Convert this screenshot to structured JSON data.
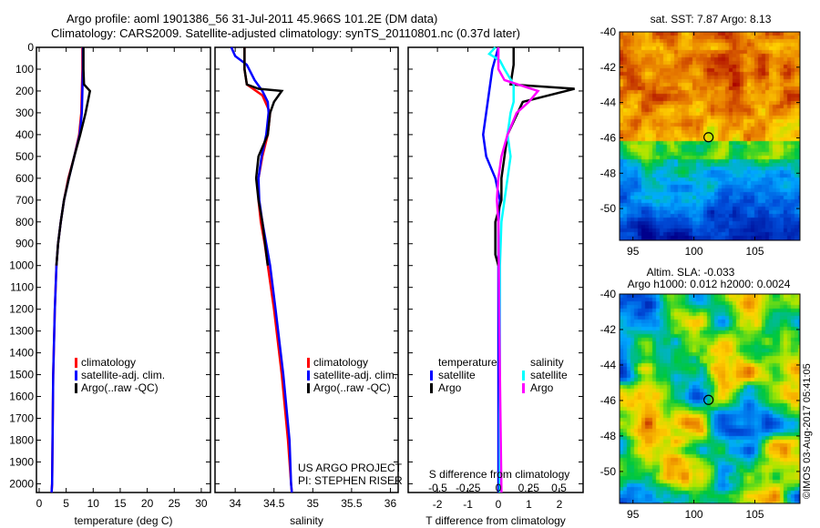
{
  "title_line1": "Argo profile: aoml 1901386_56 31-Jul-2011 45.966S 101.2E (DM data)",
  "title_line2": "Climatology: CARS2009. Satellite-adjusted climatology: synTS_20110801.nc (0.37d later)",
  "colors": {
    "climatology": "#ff0000",
    "satellite": "#0000ff",
    "argo": "#000000",
    "sat_salinity": "#00ffff",
    "argo_salinity": "#ff00ff"
  },
  "credit": "US ARGO PROJECT",
  "pi": "PI: STEPHEN RISER",
  "watermark": "©IMOS 03-Aug-2017 05:41:05",
  "chart_data": [
    {
      "type": "line",
      "name": "temperature",
      "xlabel": "temperature (deg C)",
      "ylabel": "",
      "xlim": [
        -0.5,
        31.7
      ],
      "ylim": [
        0,
        2040
      ],
      "xticks": [
        0,
        5,
        10,
        15,
        20,
        25,
        30
      ],
      "yticks": [
        0,
        100,
        200,
        300,
        400,
        500,
        600,
        700,
        800,
        900,
        1000,
        1100,
        1200,
        1300,
        1400,
        1500,
        1600,
        1700,
        1800,
        1900,
        2000
      ],
      "legend": [
        "climatology",
        "satellite-adj. clim.",
        "Argo(..raw -QC)"
      ],
      "legend_position": "lower-right",
      "series": [
        {
          "name": "climatology",
          "color": "#ff0000",
          "x": [
            8.0,
            8.0,
            7.9,
            7.8,
            7.4,
            6.5,
            5.4,
            4.6,
            4.0,
            3.5,
            3.2,
            2.9,
            2.6,
            2.4,
            2.3
          ],
          "y": [
            0,
            100,
            200,
            300,
            400,
            500,
            600,
            700,
            800,
            900,
            1000,
            1200,
            1500,
            2000,
            2040
          ]
        },
        {
          "name": "satellite-adj. clim.",
          "color": "#0000ff",
          "x": [
            8.1,
            8.1,
            8.0,
            7.9,
            7.5,
            6.5,
            5.5,
            4.6,
            4.0,
            3.5,
            3.2,
            2.9,
            2.6,
            2.4,
            2.3
          ],
          "y": [
            0,
            100,
            200,
            300,
            400,
            500,
            600,
            700,
            800,
            900,
            1000,
            1200,
            1500,
            2000,
            2040
          ]
        },
        {
          "name": "Argo(..raw -QC)",
          "color": "#000000",
          "x": [
            8.2,
            8.2,
            8.3,
            9.4,
            8.6,
            7.6,
            6.5,
            5.5,
            4.6,
            4.0,
            3.5,
            3.2
          ],
          "y": [
            0,
            100,
            170,
            200,
            300,
            400,
            500,
            600,
            700,
            800,
            900,
            1000
          ]
        }
      ]
    },
    {
      "type": "line",
      "name": "salinity",
      "xlabel": "salinity",
      "xlim": [
        33.74,
        36.1
      ],
      "ylim": [
        0,
        2040
      ],
      "xticks": [
        34,
        34.5,
        35,
        35.5,
        36
      ],
      "legend": [
        "climatology",
        "satellite-adj. clim.",
        "Argo(..raw -QC)"
      ],
      "legend_position": "lower-right",
      "series": [
        {
          "name": "climatology",
          "color": "#ff0000",
          "x": [
            34.12,
            34.12,
            34.15,
            34.35,
            34.45,
            34.42,
            34.35,
            34.3,
            34.3,
            34.33,
            34.38,
            34.42,
            34.5,
            34.6,
            34.68,
            34.72,
            34.73
          ],
          "y": [
            0,
            100,
            170,
            220,
            300,
            400,
            500,
            600,
            700,
            800,
            900,
            1000,
            1200,
            1500,
            1800,
            2000,
            2040
          ]
        },
        {
          "name": "satellite-adj. clim.",
          "color": "#0000ff",
          "x": [
            33.95,
            34.0,
            34.15,
            34.25,
            34.35,
            34.42,
            34.43,
            34.4,
            34.34,
            34.3,
            34.31,
            34.35,
            34.4,
            34.45,
            34.52,
            34.62,
            34.7,
            34.72,
            34.73
          ],
          "y": [
            0,
            40,
            80,
            150,
            200,
            250,
            300,
            400,
            500,
            600,
            700,
            800,
            900,
            1000,
            1200,
            1500,
            1800,
            2000,
            2040
          ]
        },
        {
          "name": "Argo(..raw -QC)",
          "color": "#000000",
          "x": [
            34.12,
            34.12,
            34.15,
            34.3,
            34.6,
            34.5,
            34.45,
            34.42,
            34.3,
            34.27,
            34.3,
            34.35,
            34.42
          ],
          "y": [
            0,
            100,
            170,
            190,
            200,
            250,
            300,
            400,
            500,
            600,
            700,
            800,
            1000
          ]
        }
      ]
    },
    {
      "type": "line",
      "name": "difference from climatology",
      "xlabel": "T difference from climatology",
      "x2label": "S difference from climatology",
      "xlim": [
        -2.96,
        2.78
      ],
      "ylim": [
        0,
        2040
      ],
      "xticks": [
        -2,
        -1,
        0,
        1,
        2
      ],
      "x2ticks": [
        -0.5,
        -0.25,
        0,
        0.25,
        0.5
      ],
      "legend_titles": [
        "temperature",
        "salinity"
      ],
      "legend": [
        "satellite",
        "Argo",
        "satellite",
        "Argo"
      ],
      "legend_position": "lower-center",
      "series": [
        {
          "name": "temperature satellite",
          "color": "#0000ff",
          "x": [
            0,
            -0.2,
            -0.3,
            -0.4,
            -0.5,
            -0.4,
            -0.1,
            0.05,
            0,
            0,
            0,
            0
          ],
          "y": [
            0,
            100,
            200,
            300,
            400,
            500,
            600,
            700,
            800,
            1000,
            1500,
            2040
          ]
        },
        {
          "name": "temperature Argo",
          "color": "#000000",
          "x": [
            0.5,
            0.5,
            0.4,
            2.5,
            0.8,
            0.3,
            0.1,
            0.1,
            -0.1,
            -0.1,
            0,
            0
          ],
          "y": [
            0,
            80,
            170,
            190,
            250,
            400,
            600,
            700,
            800,
            950,
            1000,
            1000
          ]
        },
        {
          "name": "salinity satellite",
          "color": "#00ffff",
          "x": [
            -0.1,
            -0.3,
            0.05,
            0.2,
            0.5,
            0.5,
            0.4,
            0.3,
            0.4,
            0.3,
            0.2,
            0.1,
            0.05,
            0.05
          ],
          "y": [
            0,
            30,
            60,
            100,
            170,
            250,
            300,
            400,
            500,
            600,
            700,
            800,
            1000,
            2040
          ]
        },
        {
          "name": "salinity Argo",
          "color": "#ff00ff",
          "x": [
            0,
            0,
            0.2,
            1.3,
            1.0,
            0.6,
            0.3,
            0.1,
            0,
            -0.05,
            0,
            0.05,
            0.1
          ],
          "y": [
            0,
            100,
            150,
            200,
            250,
            300,
            400,
            500,
            600,
            700,
            800,
            1500,
            2040
          ]
        }
      ]
    },
    {
      "type": "heatmap",
      "name": "sst map",
      "title": "sat. SST: 7.87 Argo: 8.13",
      "xlim": [
        93.9,
        108.7
      ],
      "ylim": [
        -51.8,
        -40
      ],
      "xticks": [
        95,
        100,
        105
      ],
      "yticks": [
        -40,
        -42,
        -44,
        -46,
        -48,
        -50
      ],
      "marker": {
        "lon": 101.2,
        "lat": -45.966
      }
    },
    {
      "type": "heatmap",
      "name": "sla map",
      "title_line1": "Altim. SLA: -0.033",
      "title_line2": "Argo h1000: 0.012 h2000: 0.0024",
      "xlim": [
        93.9,
        108.7
      ],
      "ylim": [
        -51.8,
        -40
      ],
      "xticks": [
        95,
        100,
        105
      ],
      "yticks": [
        -40,
        -42,
        -44,
        -46,
        -48,
        -50
      ],
      "marker": {
        "lon": 101.2,
        "lat": -45.966
      }
    }
  ]
}
